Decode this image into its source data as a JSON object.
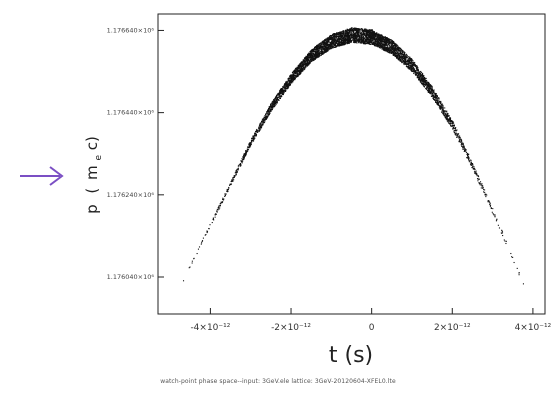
{
  "chart_data": {
    "type": "scatter",
    "title": "",
    "xlabel": "t (s)",
    "ylabel": "p (mec)",
    "ylabel_main": "p",
    "ylabel_open": "(",
    "ylabel_m": "m",
    "ylabel_sub": "e",
    "ylabel_c": "c)",
    "xlim": [
      -5.3e-12,
      4.3e-12
    ],
    "ylim": [
      1175950,
      1176680
    ],
    "x_ticks": [
      {
        "value": -4e-12,
        "label": "-4×10⁻¹²"
      },
      {
        "value": -2e-12,
        "label": "-2×10⁻¹²"
      },
      {
        "value": 0,
        "label": "0"
      },
      {
        "value": 2e-12,
        "label": "2×10⁻¹²"
      },
      {
        "value": 4e-12,
        "label": "4×10⁻¹²"
      }
    ],
    "y_ticks": [
      {
        "value": 1176640,
        "label": "1.176640×10⁶"
      },
      {
        "value": 1176440,
        "label": "1.176440×10⁶"
      },
      {
        "value": 1176240,
        "label": "1.176240×10⁶"
      },
      {
        "value": 1176040,
        "label": "1.176040×10⁶"
      }
    ],
    "series": [
      {
        "color": "#111111",
        "description_shape": "parabolic band (chirped bunch)",
        "x": [
          -4.9e-12,
          -4.5e-12,
          -4e-12,
          -3.5e-12,
          -3e-12,
          -2.5e-12,
          -2e-12,
          -1.5e-12,
          -1e-12,
          -5e-13,
          0,
          5e-13,
          1e-12,
          1.5e-12,
          2e-12,
          2.5e-12,
          3e-12,
          3.5e-12,
          4e-12
        ],
        "y": [
          1175985,
          1176070,
          1176170,
          1176270,
          1176370,
          1176455,
          1176525,
          1176580,
          1176615,
          1176630,
          1176625,
          1176600,
          1176555,
          1176490,
          1176410,
          1176310,
          1176200,
          1176085,
          1175965
        ],
        "band_halfwidth": [
          2,
          3,
          4,
          5,
          7,
          10,
          12,
          15,
          17,
          18,
          18,
          17,
          15,
          13,
          10,
          8,
          6,
          4,
          3
        ]
      }
    ],
    "grid": false,
    "legend": "none"
  },
  "arrow_icon": "right-arrow-icon",
  "arrow_color": "#7b4fc4",
  "caption": "watch-point phase space--input: 3GeV.ele lattice: 3GeV-20120604-XFEL0.lte"
}
